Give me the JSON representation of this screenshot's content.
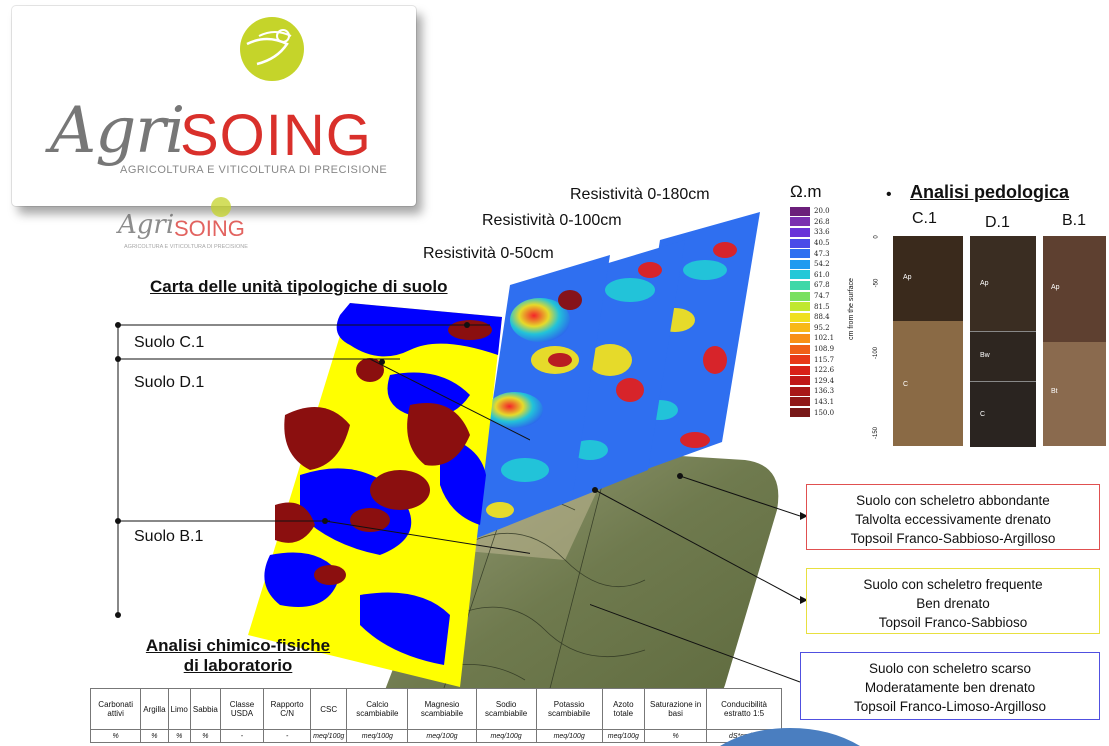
{
  "logo": {
    "main": {
      "agri": "Agri",
      "soing": "SOING",
      "tagline": "AGRICOLTURA E VITICOLTURA DI PRECISIONE"
    },
    "small": {
      "agri": "Agri",
      "soing": "SOING",
      "tagline": "AGRICOLTURA E VITICOLTURA DI PRECISIONE"
    }
  },
  "resistivity": {
    "label_180": "Resistività 0-180cm",
    "label_100": "Resistività 0-100cm",
    "label_50": "Resistività 0-50cm"
  },
  "legend": {
    "unit": "Ω.m",
    "values": [
      "20.0",
      "26.8",
      "33.6",
      "40.5",
      "47.3",
      "54.2",
      "61.0",
      "67.8",
      "74.7",
      "81.5",
      "88.4",
      "95.2",
      "102.1",
      "108.9",
      "115.7",
      "122.6",
      "129.4",
      "136.3",
      "143.1",
      "150.0"
    ],
    "colors": [
      "#6b1f7a",
      "#7a2fb0",
      "#6a33d8",
      "#4a4ae8",
      "#2f6ff0",
      "#1f9af0",
      "#22c8d8",
      "#3fd8a8",
      "#7ae060",
      "#c0e830",
      "#f0e020",
      "#f8b818",
      "#f89018",
      "#f06018",
      "#e83818",
      "#d82018",
      "#c01818",
      "#a81818",
      "#901818",
      "#781818"
    ]
  },
  "soil_map": {
    "title": "Carta delle unità tipologiche di suolo"
  },
  "suolo": {
    "c1": "Suolo C.1",
    "d1": "Suolo D.1",
    "b1": "Suolo B.1"
  },
  "pedo": {
    "title": "Analisi pedologica",
    "bullet": "•",
    "profiles": [
      "C.1",
      "D.1",
      "B.1"
    ],
    "axis_title": "cm from the surface",
    "ticks": [
      "0",
      "-50",
      "-100",
      "-150"
    ],
    "horizons": {
      "c1": [
        "Ap",
        "C"
      ],
      "d1": [
        "Ap",
        "Bw",
        "C"
      ],
      "b1": [
        "Ap",
        "Bt"
      ]
    }
  },
  "descriptions": [
    {
      "line1": "Suolo con scheletro abbondante",
      "line2": "Talvolta eccessivamente drenato",
      "line3": "Topsoil Franco-Sabbioso-Argilloso",
      "border": "#e05050"
    },
    {
      "line1": "Suolo con scheletro frequente",
      "line2": "Ben drenato",
      "line3": "Topsoil Franco-Sabbioso",
      "border": "#e8e040"
    },
    {
      "line1": "Suolo con scheletro scarso",
      "line2": "Moderatamente ben drenato",
      "line3": "Topsoil Franco-Limoso-Argilloso",
      "border": "#5050e0"
    }
  ],
  "lab": {
    "title_line1": "Analisi chimico-fisiche",
    "title_line2": "di laboratorio",
    "headers": [
      "Carbonati attivi",
      "Argilla",
      "Limo",
      "Sabbia",
      "Classe USDA",
      "Rapporto C/N",
      "CSC",
      "Calcio scambiabile",
      "Magnesio scambiabile",
      "Sodio scambiabile",
      "Potassio scambiabile",
      "Azoto totale",
      "Saturazione in basi",
      "Conducibilità estratto 1:5"
    ],
    "units": [
      "%",
      "%",
      "%",
      "%",
      "-",
      "-",
      "meq/100g",
      "meq/100g",
      "meq/100g",
      "meq/100g",
      "meq/100g",
      "meq/100g",
      "%",
      "dS*cm^-1"
    ]
  }
}
